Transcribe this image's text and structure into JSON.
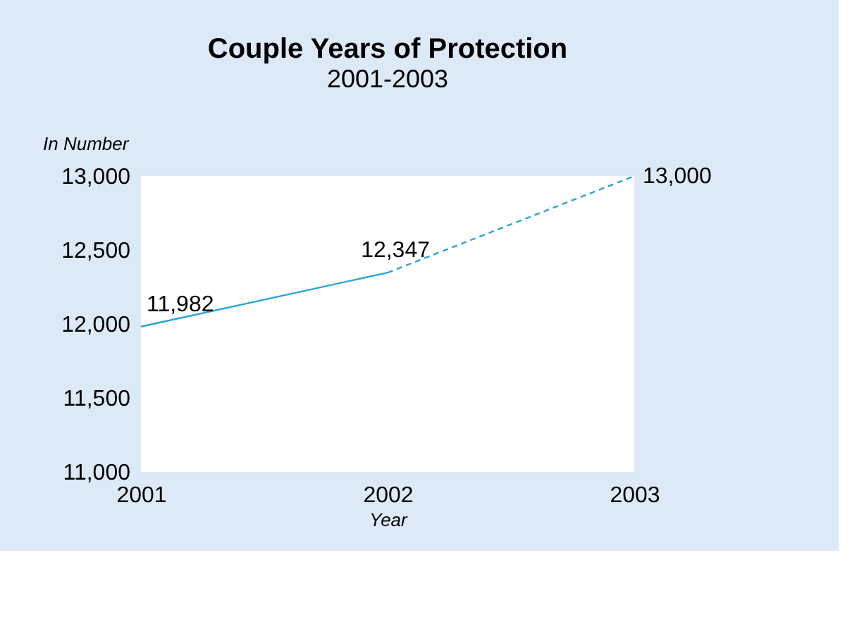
{
  "chart_data": {
    "type": "line",
    "title": "Couple Years of Protection",
    "subtitle": "2001-2003",
    "xlabel": "Year",
    "ylabel": "In Number",
    "categories": [
      "2001",
      "2002",
      "2003"
    ],
    "series": [
      {
        "color": "#29a3db",
        "line_style": "solid",
        "values": [
          11982,
          12347,
          null
        ],
        "value_labels": [
          "11,982",
          "12,347",
          null
        ]
      },
      {
        "color": "#29a3db",
        "line_style": "dashed",
        "values": [
          null,
          12347,
          13000
        ],
        "value_labels": [
          null,
          null,
          "13,000"
        ]
      }
    ],
    "ylim": [
      11000,
      13000
    ],
    "yticks": [
      {
        "value": 11000,
        "label": "11,000"
      },
      {
        "value": 11500,
        "label": "11,500"
      },
      {
        "value": 12000,
        "label": "12,000"
      },
      {
        "value": 12500,
        "label": "12,500"
      },
      {
        "value": 13000,
        "label": "13,000"
      }
    ],
    "grid": false,
    "marker": "none"
  }
}
